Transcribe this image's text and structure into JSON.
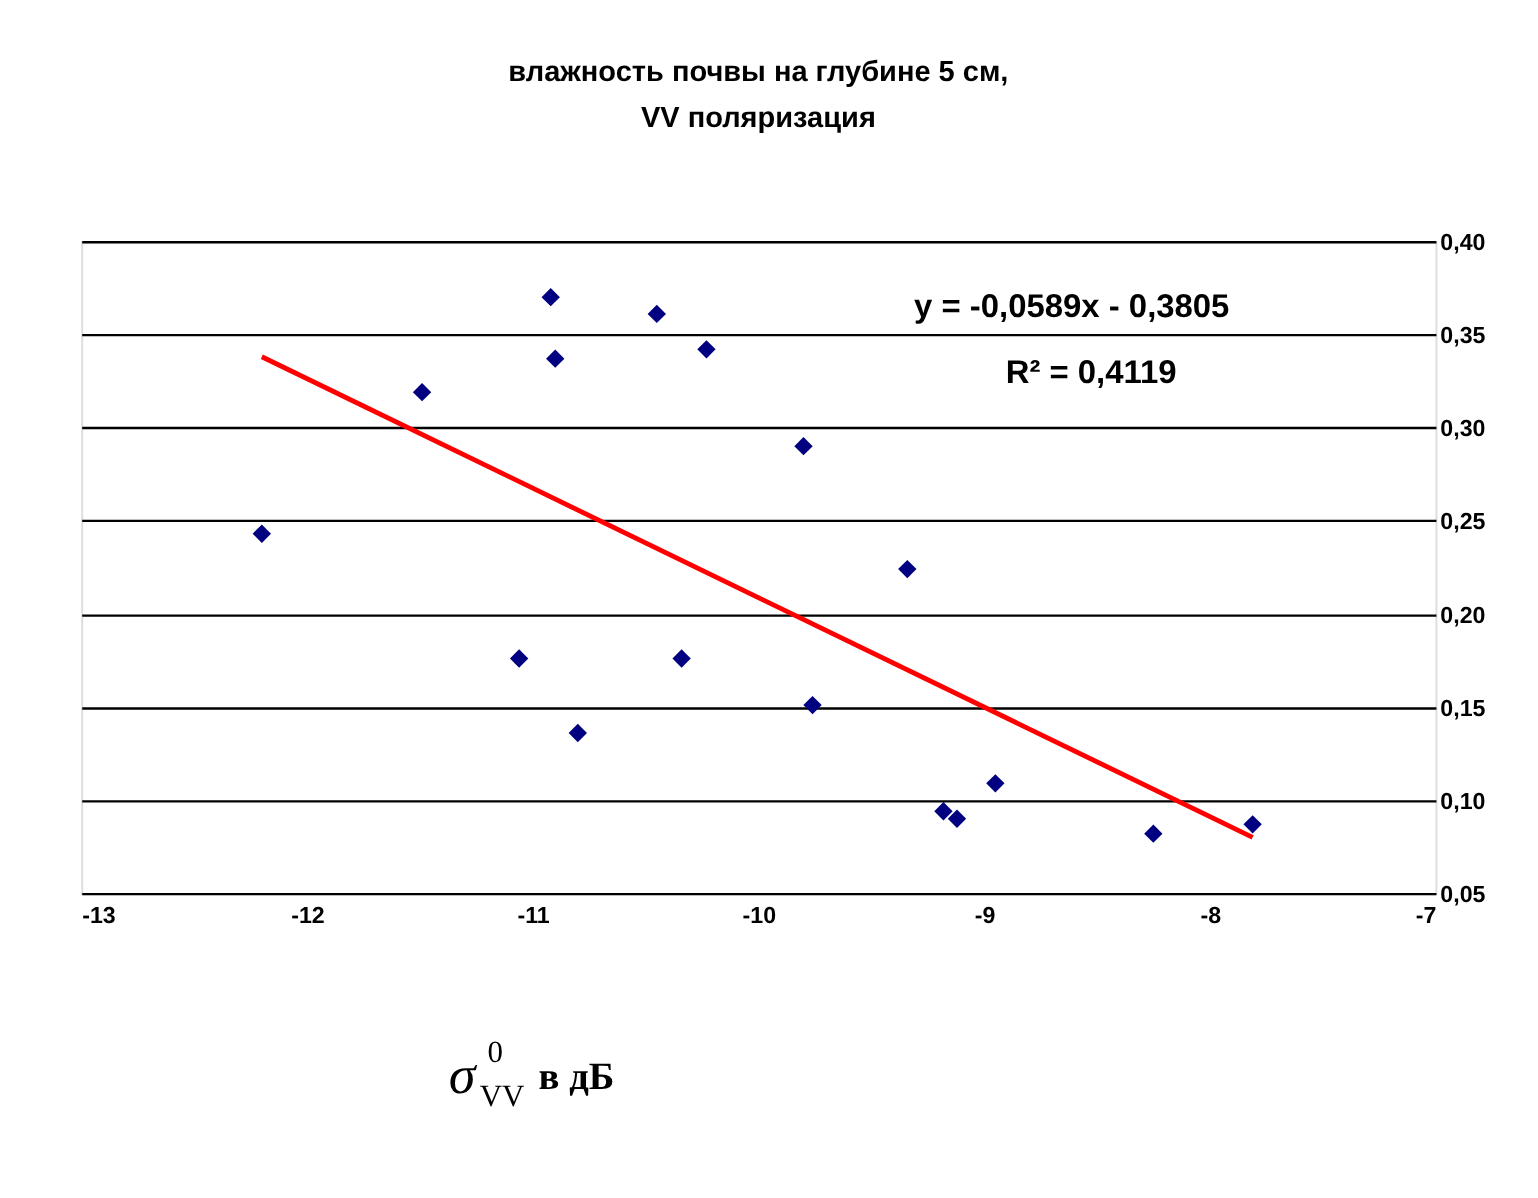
{
  "chart_data": {
    "type": "scatter",
    "title": [
      "влажность почвы на глубине 5 см,",
      "VV поляризация"
    ],
    "xlabel": "σ$^{0}$$_{VV}$ в дБ",
    "annotations": [
      "y = -0,0589x - 0,3805",
      "R² = 0,4119"
    ],
    "series": [
      {
        "color": "#000080",
        "marker": "diamond",
        "x": [
          -12.2,
          -11.49,
          -10.92,
          -10.9,
          -10.45,
          -10.23,
          -11.06,
          -10.34,
          -10.8,
          -9.8,
          -9.34,
          -9.76,
          -9.18,
          -9.12,
          -8.95,
          -8.25,
          -7.81
        ],
        "values": [
          0.243,
          0.319,
          0.37,
          0.337,
          0.361,
          0.342,
          0.176,
          0.176,
          0.136,
          0.29,
          0.224,
          0.151,
          0.094,
          0.09,
          0.109,
          0.082,
          0.087
        ]
      },
      {
        "type": "line",
        "color": "#ff0000",
        "x": [
          -12.2,
          -7.81
        ],
        "values": [
          0.338,
          0.08
        ]
      }
    ],
    "xlim": [
      -13,
      -7
    ],
    "xticks": [
      -13,
      -12,
      -11,
      -10,
      -9,
      -8,
      -7
    ],
    "ylim": [
      0.05,
      0.4
    ],
    "yticks": [
      {
        "value": 0.05,
        "label": "0,05"
      },
      {
        "value": 0.1,
        "label": "0,10"
      },
      {
        "value": 0.15,
        "label": "0,15"
      },
      {
        "value": 0.2,
        "label": "0,20"
      },
      {
        "value": 0.25,
        "label": "0,25"
      },
      {
        "value": 0.3,
        "label": "0,30"
      },
      {
        "value": 0.35,
        "label": "0,35"
      },
      {
        "value": 0.4,
        "label": "0,40"
      }
    ],
    "grid": "y"
  }
}
